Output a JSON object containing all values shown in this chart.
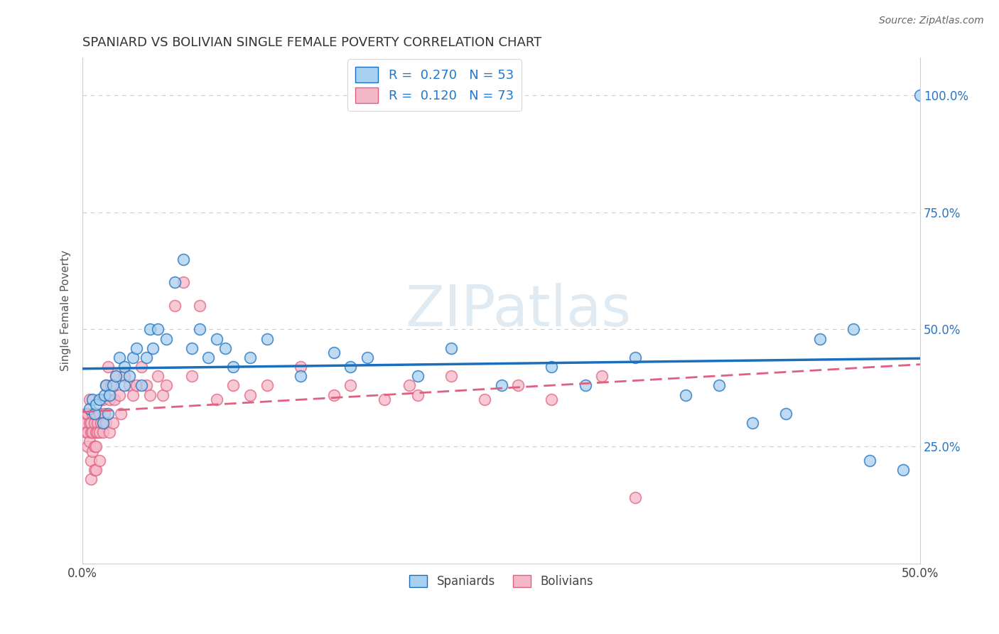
{
  "title": "SPANIARD VS BOLIVIAN SINGLE FEMALE POVERTY CORRELATION CHART",
  "source": "Source: ZipAtlas.com",
  "ylabel": "Single Female Poverty",
  "xlim": [
    0.0,
    0.5
  ],
  "ylim": [
    0.0,
    1.08
  ],
  "spaniards_R": 0.27,
  "spaniards_N": 53,
  "bolivians_R": 0.12,
  "bolivians_N": 73,
  "spaniard_color": "#a8d0f0",
  "bolivian_color": "#f5b8c8",
  "spaniard_line_color": "#1a6fbd",
  "bolivian_line_color": "#e06080",
  "watermark_color": "#c8dae8",
  "legend_labels": [
    "Spaniards",
    "Bolivians"
  ],
  "spaniards_x": [
    0.004,
    0.006,
    0.007,
    0.008,
    0.01,
    0.012,
    0.013,
    0.014,
    0.015,
    0.016,
    0.018,
    0.02,
    0.022,
    0.025,
    0.025,
    0.028,
    0.03,
    0.032,
    0.035,
    0.038,
    0.04,
    0.042,
    0.045,
    0.05,
    0.055,
    0.06,
    0.065,
    0.07,
    0.075,
    0.08,
    0.085,
    0.09,
    0.1,
    0.11,
    0.13,
    0.15,
    0.16,
    0.17,
    0.2,
    0.22,
    0.25,
    0.28,
    0.3,
    0.33,
    0.36,
    0.38,
    0.4,
    0.42,
    0.44,
    0.46,
    0.47,
    0.49,
    0.5
  ],
  "spaniards_y": [
    0.33,
    0.35,
    0.32,
    0.34,
    0.35,
    0.3,
    0.36,
    0.38,
    0.32,
    0.36,
    0.38,
    0.4,
    0.44,
    0.42,
    0.38,
    0.4,
    0.44,
    0.46,
    0.38,
    0.44,
    0.5,
    0.46,
    0.5,
    0.48,
    0.6,
    0.65,
    0.46,
    0.5,
    0.44,
    0.48,
    0.46,
    0.42,
    0.44,
    0.48,
    0.4,
    0.45,
    0.42,
    0.44,
    0.4,
    0.46,
    0.38,
    0.42,
    0.38,
    0.44,
    0.36,
    0.38,
    0.3,
    0.32,
    0.48,
    0.5,
    0.22,
    0.2,
    1.0
  ],
  "bolivians_x": [
    0.001,
    0.002,
    0.002,
    0.003,
    0.003,
    0.003,
    0.004,
    0.004,
    0.004,
    0.005,
    0.005,
    0.005,
    0.005,
    0.006,
    0.006,
    0.006,
    0.007,
    0.007,
    0.007,
    0.008,
    0.008,
    0.008,
    0.008,
    0.009,
    0.009,
    0.01,
    0.01,
    0.01,
    0.011,
    0.012,
    0.012,
    0.013,
    0.014,
    0.014,
    0.015,
    0.016,
    0.016,
    0.017,
    0.018,
    0.019,
    0.02,
    0.022,
    0.023,
    0.025,
    0.028,
    0.03,
    0.032,
    0.035,
    0.038,
    0.04,
    0.045,
    0.048,
    0.05,
    0.055,
    0.06,
    0.065,
    0.07,
    0.08,
    0.09,
    0.1,
    0.11,
    0.13,
    0.15,
    0.16,
    0.18,
    0.195,
    0.2,
    0.22,
    0.24,
    0.26,
    0.28,
    0.31,
    0.33
  ],
  "bolivians_y": [
    0.3,
    0.28,
    0.32,
    0.28,
    0.25,
    0.32,
    0.3,
    0.26,
    0.35,
    0.28,
    0.3,
    0.22,
    0.18,
    0.32,
    0.28,
    0.24,
    0.3,
    0.25,
    0.2,
    0.28,
    0.32,
    0.25,
    0.2,
    0.3,
    0.28,
    0.32,
    0.28,
    0.22,
    0.3,
    0.35,
    0.28,
    0.32,
    0.38,
    0.3,
    0.42,
    0.35,
    0.28,
    0.38,
    0.3,
    0.35,
    0.4,
    0.36,
    0.32,
    0.4,
    0.38,
    0.36,
    0.38,
    0.42,
    0.38,
    0.36,
    0.4,
    0.36,
    0.38,
    0.55,
    0.6,
    0.4,
    0.55,
    0.35,
    0.38,
    0.36,
    0.38,
    0.42,
    0.36,
    0.38,
    0.35,
    0.38,
    0.36,
    0.4,
    0.35,
    0.38,
    0.35,
    0.4,
    0.14
  ]
}
